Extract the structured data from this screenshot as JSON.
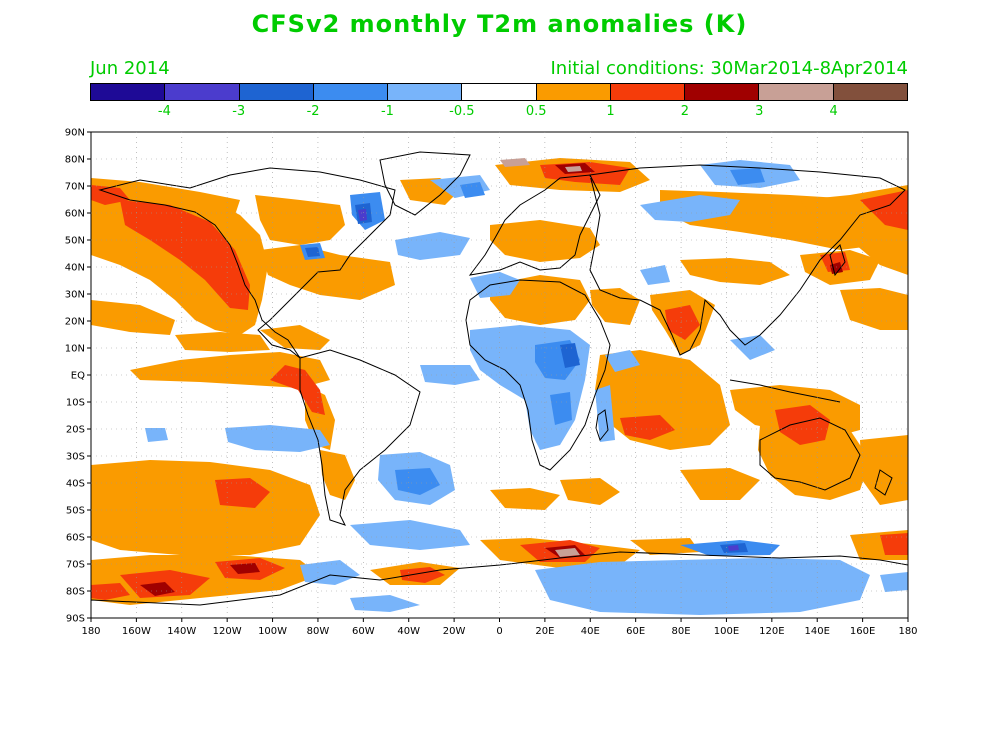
{
  "title": "CFSv2 monthly T2m anomalies (K)",
  "forecast_month": "Jun 2014",
  "initial_conditions": "Initial conditions: 30Mar2014-8Apr2014",
  "colorbar": {
    "colors": [
      "#1e0a96",
      "#4b3ccd",
      "#1e64d2",
      "#3c8cf0",
      "#78b4fa",
      "#ffffff",
      "#fa9b00",
      "#f53c0a",
      "#a00000",
      "#c8a096",
      "#82503c"
    ],
    "labels": [
      "-4",
      "-3",
      "-2",
      "-1",
      "-0.5",
      "0.5",
      "1",
      "2",
      "3",
      "4"
    ]
  },
  "lat_labels": [
    "90N",
    "80N",
    "70N",
    "60N",
    "50N",
    "40N",
    "30N",
    "20N",
    "10N",
    "EQ",
    "10S",
    "20S",
    "30S",
    "40S",
    "50S",
    "60S",
    "70S",
    "80S",
    "90S"
  ],
  "lon_labels": [
    "180",
    "160W",
    "140W",
    "120W",
    "100W",
    "80W",
    "60W",
    "40W",
    "20W",
    "0",
    "20E",
    "40E",
    "60E",
    "80E",
    "100E",
    "120E",
    "140E",
    "160E",
    "180"
  ]
}
